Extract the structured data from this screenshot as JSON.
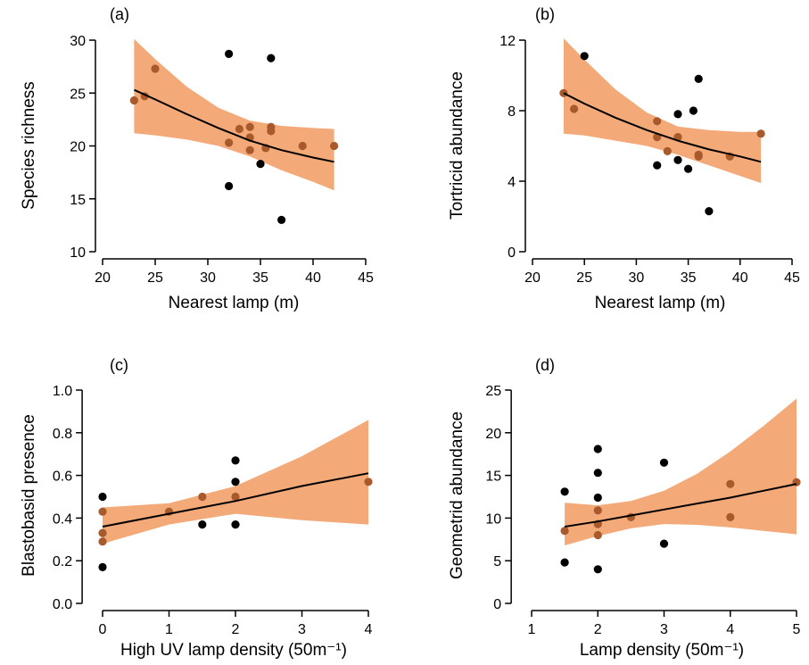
{
  "chart_data": [
    {
      "type": "scatter",
      "panel_label": "(a)",
      "xlabel": "Nearest lamp (m)",
      "ylabel": "Species richness",
      "xlim": [
        20,
        45
      ],
      "ylim": [
        10,
        30
      ],
      "xticks": [
        20,
        25,
        30,
        35,
        40,
        45
      ],
      "yticks": [
        10,
        15,
        20,
        25,
        30
      ],
      "xtick_labels": [
        "20",
        "25",
        "30",
        "35",
        "40",
        "45"
      ],
      "ytick_labels": [
        "10",
        "15",
        "20",
        "25",
        "30"
      ],
      "points": [
        [
          23,
          24.3
        ],
        [
          24,
          24.7
        ],
        [
          25,
          27.3
        ],
        [
          32,
          28.7
        ],
        [
          32,
          20.3
        ],
        [
          32,
          16.2
        ],
        [
          33,
          21.6
        ],
        [
          34,
          21.8
        ],
        [
          34,
          20.8
        ],
        [
          34,
          19.6
        ],
        [
          35,
          18.3
        ],
        [
          35.5,
          19.8
        ],
        [
          36,
          28.3
        ],
        [
          36,
          21.8
        ],
        [
          36,
          21.4
        ],
        [
          37,
          13.0
        ],
        [
          39,
          20.0
        ],
        [
          42,
          20.0
        ]
      ],
      "fit": {
        "x": [
          23,
          25,
          28,
          31,
          34,
          37,
          40,
          42
        ],
        "y": [
          25.3,
          24.4,
          23.0,
          21.7,
          20.5,
          19.6,
          18.9,
          18.5
        ]
      },
      "ci_upper": {
        "x": [
          23,
          25,
          28,
          31,
          34,
          37,
          40,
          42
        ],
        "y": [
          30.1,
          28.2,
          25.6,
          23.6,
          22.4,
          21.9,
          21.7,
          21.6
        ]
      },
      "ci_lower": {
        "x": [
          23,
          25,
          28,
          31,
          34,
          37,
          40,
          42
        ],
        "y": [
          21.2,
          21.0,
          20.6,
          20.0,
          19.0,
          17.7,
          16.6,
          15.8
        ]
      }
    },
    {
      "type": "scatter",
      "panel_label": "(b)",
      "xlabel": "Nearest lamp (m)",
      "ylabel": "Tortricid abundance",
      "xlim": [
        20,
        45
      ],
      "ylim": [
        0,
        12
      ],
      "xticks": [
        20,
        25,
        30,
        35,
        40,
        45
      ],
      "yticks": [
        0,
        4,
        8,
        12
      ],
      "xtick_labels": [
        "20",
        "25",
        "30",
        "35",
        "40",
        "45"
      ],
      "ytick_labels": [
        "0",
        "4",
        "8",
        "12"
      ],
      "points": [
        [
          23,
          9.0
        ],
        [
          24,
          8.1
        ],
        [
          25,
          11.1
        ],
        [
          32,
          7.4
        ],
        [
          32,
          6.5
        ],
        [
          32,
          4.9
        ],
        [
          33,
          5.7
        ],
        [
          34,
          7.8
        ],
        [
          34,
          6.5
        ],
        [
          34,
          5.2
        ],
        [
          35,
          4.7
        ],
        [
          35.5,
          8.0
        ],
        [
          36,
          9.8
        ],
        [
          36,
          5.5
        ],
        [
          36,
          5.4
        ],
        [
          37,
          2.3
        ],
        [
          39,
          5.4
        ],
        [
          42,
          6.7
        ]
      ],
      "fit": {
        "x": [
          23,
          25,
          28,
          31,
          34,
          37,
          40,
          42
        ],
        "y": [
          9.0,
          8.4,
          7.6,
          6.9,
          6.3,
          5.8,
          5.4,
          5.1
        ]
      },
      "ci_upper": {
        "x": [
          23,
          25,
          28,
          31,
          34,
          37,
          40,
          42
        ],
        "y": [
          12.1,
          10.9,
          9.2,
          7.9,
          7.1,
          6.9,
          6.8,
          6.8
        ]
      },
      "ci_lower": {
        "x": [
          23,
          25,
          28,
          31,
          34,
          37,
          40,
          42
        ],
        "y": [
          6.7,
          6.6,
          6.3,
          6.0,
          5.5,
          4.9,
          4.3,
          3.9
        ]
      }
    },
    {
      "type": "scatter",
      "panel_label": "(c)",
      "xlabel": "High UV lamp density (50m⁻¹)",
      "ylabel": "Blastobasid presence",
      "xlim": [
        -0.2,
        4.2
      ],
      "ylim": [
        0,
        1.0
      ],
      "xticks": [
        0,
        1,
        2,
        3,
        4
      ],
      "yticks": [
        0,
        0.2,
        0.4,
        0.6,
        0.8,
        1.0
      ],
      "xtick_labels": [
        "0",
        "1",
        "2",
        "3",
        "4"
      ],
      "ytick_labels": [
        "0.0",
        "0.2",
        "0.4",
        "0.6",
        "0.8",
        "1.0"
      ],
      "points": [
        [
          0,
          0.5
        ],
        [
          0,
          0.43
        ],
        [
          0,
          0.33
        ],
        [
          0,
          0.29
        ],
        [
          0,
          0.17
        ],
        [
          1,
          0.43
        ],
        [
          1.5,
          0.5
        ],
        [
          1.5,
          0.37
        ],
        [
          2,
          0.67
        ],
        [
          2,
          0.57
        ],
        [
          2,
          0.5
        ],
        [
          2,
          0.37
        ],
        [
          4,
          0.57
        ]
      ],
      "fit": {
        "x": [
          0,
          1,
          2,
          3,
          4
        ],
        "y": [
          0.36,
          0.42,
          0.48,
          0.55,
          0.61
        ]
      },
      "ci_upper": {
        "x": [
          0,
          1,
          2,
          3,
          4
        ],
        "y": [
          0.45,
          0.47,
          0.55,
          0.69,
          0.86
        ]
      },
      "ci_lower": {
        "x": [
          0,
          1,
          2,
          3,
          4
        ],
        "y": [
          0.28,
          0.37,
          0.42,
          0.39,
          0.37
        ]
      }
    },
    {
      "type": "scatter",
      "panel_label": "(d)",
      "xlabel": "Lamp density (50m⁻¹)",
      "ylabel": "Geometrid abundance",
      "xlim": [
        0.8,
        5.2
      ],
      "ylim": [
        0,
        25
      ],
      "xticks": [
        1,
        2,
        3,
        4,
        5
      ],
      "yticks": [
        0,
        5,
        10,
        15,
        20,
        25
      ],
      "xtick_labels": [
        "1",
        "2",
        "3",
        "4",
        "5"
      ],
      "ytick_labels": [
        "0",
        "5",
        "10",
        "15",
        "20",
        "25"
      ],
      "points": [
        [
          1.5,
          13.1
        ],
        [
          1.5,
          8.5
        ],
        [
          1.5,
          4.8
        ],
        [
          2,
          18.1
        ],
        [
          2,
          15.3
        ],
        [
          2,
          12.4
        ],
        [
          2,
          10.9
        ],
        [
          2,
          9.3
        ],
        [
          2,
          8.0
        ],
        [
          2,
          4.0
        ],
        [
          2.5,
          10.1
        ],
        [
          3,
          16.5
        ],
        [
          3,
          7.0
        ],
        [
          4,
          14.0
        ],
        [
          4,
          10.1
        ],
        [
          5,
          14.2
        ]
      ],
      "fit": {
        "x": [
          1.5,
          2,
          2.5,
          3,
          3.5,
          4,
          4.5,
          5
        ],
        "y": [
          9.0,
          9.6,
          10.3,
          11.0,
          11.7,
          12.4,
          13.2,
          14.0
        ]
      },
      "ci_upper": {
        "x": [
          1.5,
          2,
          2.5,
          3,
          3.5,
          4,
          4.5,
          5
        ],
        "y": [
          11.8,
          11.5,
          12.0,
          13.2,
          15.2,
          17.8,
          20.8,
          24.0
        ]
      },
      "ci_lower": {
        "x": [
          1.5,
          2,
          2.5,
          3,
          3.5,
          4,
          4.5,
          5
        ],
        "y": [
          6.8,
          7.9,
          8.8,
          9.3,
          9.2,
          8.9,
          8.5,
          8.1
        ]
      }
    }
  ],
  "colors": {
    "band": "#f4a978",
    "point_outside": "#000000",
    "point_inside": "#a85a2c",
    "line": "#000000"
  }
}
